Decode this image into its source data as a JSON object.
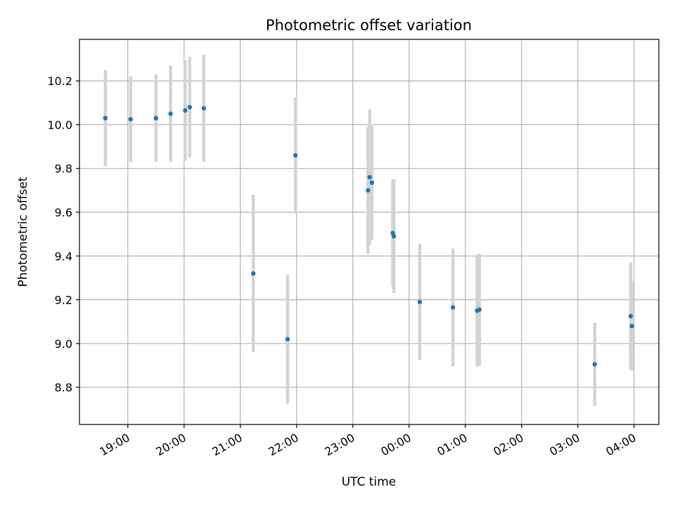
{
  "chart_data": {
    "type": "scatter",
    "title": "Photometric offset variation",
    "xlabel": "UTC time",
    "ylabel": "Photometric offset",
    "x_ticks": [
      "19:00",
      "20:00",
      "21:00",
      "22:00",
      "23:00",
      "00:00",
      "01:00",
      "02:00",
      "03:00",
      "04:00"
    ],
    "x_tick_values": [
      19.0,
      20.0,
      21.0,
      22.0,
      23.0,
      24.0,
      25.0,
      26.0,
      27.0,
      28.0
    ],
    "y_ticks": [
      "8.8",
      "9.0",
      "9.2",
      "9.4",
      "9.6",
      "9.8",
      "10.0",
      "10.2"
    ],
    "y_tick_values": [
      8.8,
      9.0,
      9.2,
      9.4,
      9.6,
      9.8,
      10.0,
      10.2
    ],
    "xlim": [
      "18:08",
      "04:26"
    ],
    "xlim_hours": [
      18.14,
      28.44
    ],
    "ylim": [
      8.63,
      10.39
    ],
    "grid": true,
    "marker_color": "#1f77b4",
    "errorbar_color": "#d3d3d3",
    "x_hours": [
      18.6,
      19.05,
      19.5,
      19.76,
      20.02,
      20.1,
      20.35,
      21.23,
      21.84,
      21.98,
      23.27,
      23.3,
      23.34,
      23.71,
      23.73,
      24.19,
      24.78,
      25.21,
      25.25,
      27.3,
      27.94,
      27.96
    ],
    "y": [
      10.03,
      10.025,
      10.03,
      10.05,
      10.065,
      10.08,
      10.075,
      9.32,
      9.02,
      9.86,
      9.7,
      9.76,
      9.735,
      9.505,
      9.49,
      9.19,
      9.165,
      9.15,
      9.155,
      8.905,
      9.125,
      9.08
    ],
    "y_err": [
      0.22,
      0.195,
      0.2,
      0.22,
      0.23,
      0.23,
      0.245,
      0.36,
      0.295,
      0.265,
      0.29,
      0.31,
      0.26,
      0.245,
      0.26,
      0.265,
      0.27,
      0.255,
      0.255,
      0.19,
      0.245,
      0.205
    ]
  }
}
